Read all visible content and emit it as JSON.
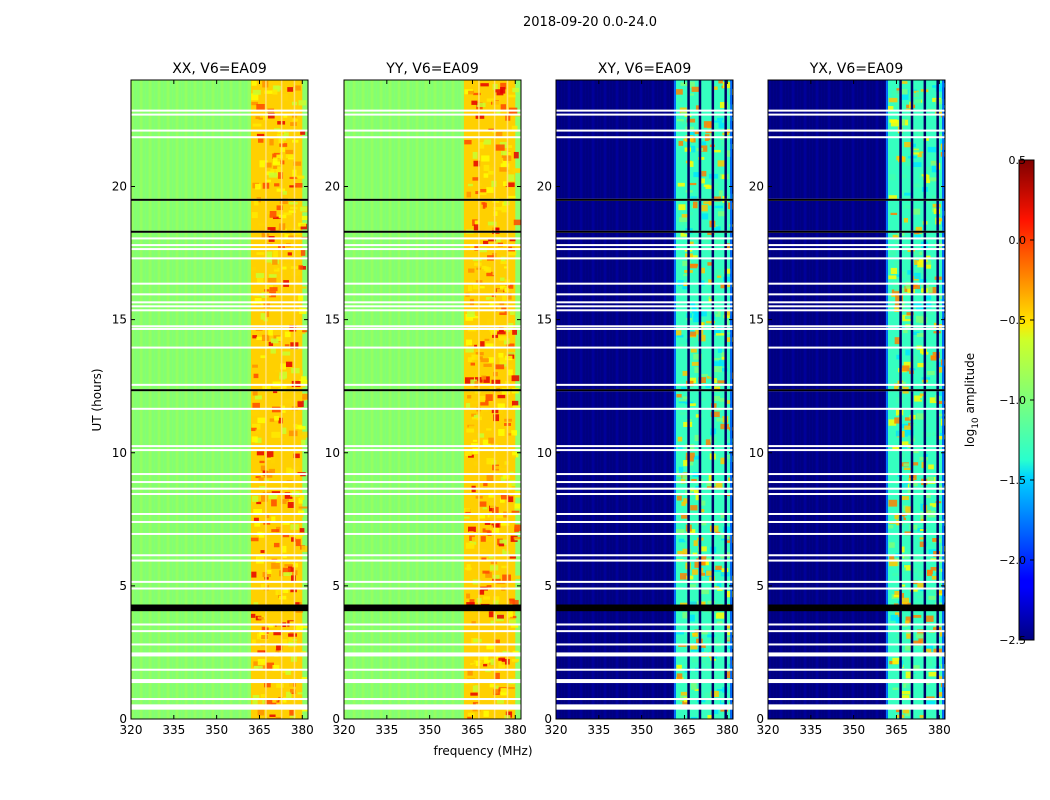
{
  "chart_data": {
    "type": "heatmap",
    "suptitle": "2018-09-20 0.0-24.0",
    "xlabel": "frequency (MHz)",
    "ylabel": "UT (hours)",
    "xlim": [
      320,
      382
    ],
    "ylim": [
      0,
      24
    ],
    "xticks": [
      320,
      335,
      350,
      365,
      380
    ],
    "yticks": [
      0,
      5,
      10,
      15,
      20
    ],
    "panels": [
      {
        "title": "XX, V6=EA09",
        "kind": "parallel",
        "bright_band_mhz": [
          362,
          380
        ],
        "bright_color": "#ff3000"
      },
      {
        "title": "YY, V6=EA09",
        "kind": "parallel",
        "bright_band_mhz": [
          362,
          380
        ],
        "bright_color": "#e00000"
      },
      {
        "title": "XY, V6=EA09",
        "kind": "cross",
        "bright_band_mhz": [
          362,
          381
        ],
        "bright_color": "#ffd000"
      },
      {
        "title": "YX, V6=EA09",
        "kind": "cross",
        "bright_band_mhz": [
          362,
          381
        ],
        "bright_color": "#ffd000"
      }
    ],
    "flagged_hours_thick": [
      [
        4.05,
        4.3
      ],
      [
        0.35,
        0.55
      ],
      [
        1.35,
        1.5
      ],
      [
        2.35,
        2.5
      ]
    ],
    "flagged_hours_thin": [
      0.75,
      1.85,
      2.8,
      3.3,
      3.55,
      4.9,
      5.15,
      5.95,
      6.15,
      6.95,
      7.4,
      7.7,
      8.45,
      8.65,
      8.9,
      9.2,
      10.1,
      10.25,
      11.65,
      12.35,
      12.55,
      13.95,
      14.65,
      14.75,
      15.35,
      15.5,
      15.65,
      15.95,
      16.35,
      17.3,
      17.65,
      17.8,
      18.05,
      18.3,
      19.5,
      21.85,
      22.1,
      22.7,
      22.85
    ],
    "colorbar": {
      "label": "log10 amplitude",
      "range": [
        -2.5,
        0.5
      ],
      "ticks": [
        0.5,
        0.0,
        -0.5,
        -1.0,
        -1.5,
        -2.0,
        -2.5
      ],
      "tick_labels": [
        "0.5",
        "0.0",
        "−0.5",
        "−1.0",
        "−1.5",
        "−2.0",
        "−2.5"
      ]
    }
  }
}
